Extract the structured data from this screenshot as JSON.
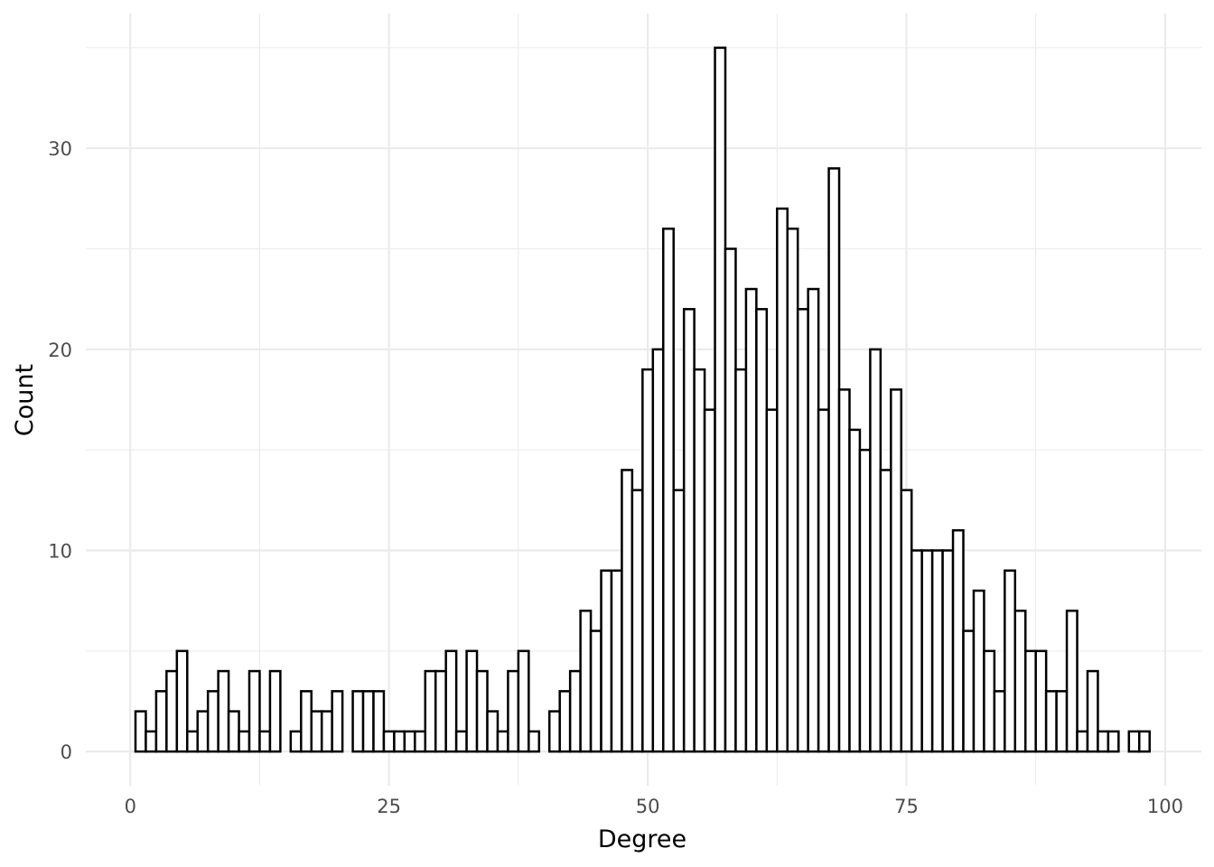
{
  "chart_data": {
    "type": "bar",
    "xlabel": "Degree",
    "ylabel": "Count",
    "xlim": [
      -4.3,
      103.5
    ],
    "ylim": [
      -1.7,
      36.7
    ],
    "x_ticks": [
      0,
      25,
      50,
      75,
      100
    ],
    "y_ticks": [
      0,
      10,
      20,
      30
    ],
    "x_tick_labels": [
      "0",
      "25",
      "50",
      "75",
      "100"
    ],
    "y_tick_labels": [
      "0",
      "10",
      "20",
      "30"
    ],
    "grid": true,
    "bin_width": 1,
    "bar_fill": "#ffffff",
    "bar_stroke": "#000000",
    "grid_color": "#ebebeb",
    "bins": [
      {
        "x": 1,
        "count": 2
      },
      {
        "x": 2,
        "count": 1
      },
      {
        "x": 3,
        "count": 3
      },
      {
        "x": 4,
        "count": 4
      },
      {
        "x": 5,
        "count": 5
      },
      {
        "x": 6,
        "count": 1
      },
      {
        "x": 7,
        "count": 2
      },
      {
        "x": 8,
        "count": 3
      },
      {
        "x": 9,
        "count": 4
      },
      {
        "x": 10,
        "count": 2
      },
      {
        "x": 11,
        "count": 1
      },
      {
        "x": 12,
        "count": 4
      },
      {
        "x": 13,
        "count": 1
      },
      {
        "x": 14,
        "count": 4
      },
      {
        "x": 15,
        "count": 0
      },
      {
        "x": 16,
        "count": 1
      },
      {
        "x": 17,
        "count": 3
      },
      {
        "x": 18,
        "count": 2
      },
      {
        "x": 19,
        "count": 2
      },
      {
        "x": 20,
        "count": 3
      },
      {
        "x": 21,
        "count": 0
      },
      {
        "x": 22,
        "count": 3
      },
      {
        "x": 23,
        "count": 3
      },
      {
        "x": 24,
        "count": 3
      },
      {
        "x": 25,
        "count": 1
      },
      {
        "x": 26,
        "count": 1
      },
      {
        "x": 27,
        "count": 1
      },
      {
        "x": 28,
        "count": 1
      },
      {
        "x": 29,
        "count": 4
      },
      {
        "x": 30,
        "count": 4
      },
      {
        "x": 31,
        "count": 5
      },
      {
        "x": 32,
        "count": 1
      },
      {
        "x": 33,
        "count": 5
      },
      {
        "x": 34,
        "count": 4
      },
      {
        "x": 35,
        "count": 2
      },
      {
        "x": 36,
        "count": 1
      },
      {
        "x": 37,
        "count": 4
      },
      {
        "x": 38,
        "count": 5
      },
      {
        "x": 39,
        "count": 1
      },
      {
        "x": 40,
        "count": 0
      },
      {
        "x": 41,
        "count": 2
      },
      {
        "x": 42,
        "count": 3
      },
      {
        "x": 43,
        "count": 4
      },
      {
        "x": 44,
        "count": 7
      },
      {
        "x": 45,
        "count": 6
      },
      {
        "x": 46,
        "count": 9
      },
      {
        "x": 47,
        "count": 9
      },
      {
        "x": 48,
        "count": 14
      },
      {
        "x": 49,
        "count": 13
      },
      {
        "x": 50,
        "count": 19
      },
      {
        "x": 51,
        "count": 20
      },
      {
        "x": 52,
        "count": 26
      },
      {
        "x": 53,
        "count": 13
      },
      {
        "x": 54,
        "count": 22
      },
      {
        "x": 55,
        "count": 19
      },
      {
        "x": 56,
        "count": 17
      },
      {
        "x": 57,
        "count": 35
      },
      {
        "x": 58,
        "count": 25
      },
      {
        "x": 59,
        "count": 19
      },
      {
        "x": 60,
        "count": 23
      },
      {
        "x": 61,
        "count": 22
      },
      {
        "x": 62,
        "count": 17
      },
      {
        "x": 63,
        "count": 27
      },
      {
        "x": 64,
        "count": 26
      },
      {
        "x": 65,
        "count": 22
      },
      {
        "x": 66,
        "count": 23
      },
      {
        "x": 67,
        "count": 17
      },
      {
        "x": 68,
        "count": 29
      },
      {
        "x": 69,
        "count": 18
      },
      {
        "x": 70,
        "count": 16
      },
      {
        "x": 71,
        "count": 15
      },
      {
        "x": 72,
        "count": 20
      },
      {
        "x": 73,
        "count": 14
      },
      {
        "x": 74,
        "count": 18
      },
      {
        "x": 75,
        "count": 13
      },
      {
        "x": 76,
        "count": 10
      },
      {
        "x": 77,
        "count": 10
      },
      {
        "x": 78,
        "count": 10
      },
      {
        "x": 79,
        "count": 10
      },
      {
        "x": 80,
        "count": 11
      },
      {
        "x": 81,
        "count": 6
      },
      {
        "x": 82,
        "count": 8
      },
      {
        "x": 83,
        "count": 5
      },
      {
        "x": 84,
        "count": 3
      },
      {
        "x": 85,
        "count": 9
      },
      {
        "x": 86,
        "count": 7
      },
      {
        "x": 87,
        "count": 5
      },
      {
        "x": 88,
        "count": 5
      },
      {
        "x": 89,
        "count": 3
      },
      {
        "x": 90,
        "count": 3
      },
      {
        "x": 91,
        "count": 7
      },
      {
        "x": 92,
        "count": 1
      },
      {
        "x": 93,
        "count": 4
      },
      {
        "x": 94,
        "count": 1
      },
      {
        "x": 95,
        "count": 1
      },
      {
        "x": 96,
        "count": 0
      },
      {
        "x": 97,
        "count": 1
      },
      {
        "x": 98,
        "count": 1
      }
    ]
  }
}
